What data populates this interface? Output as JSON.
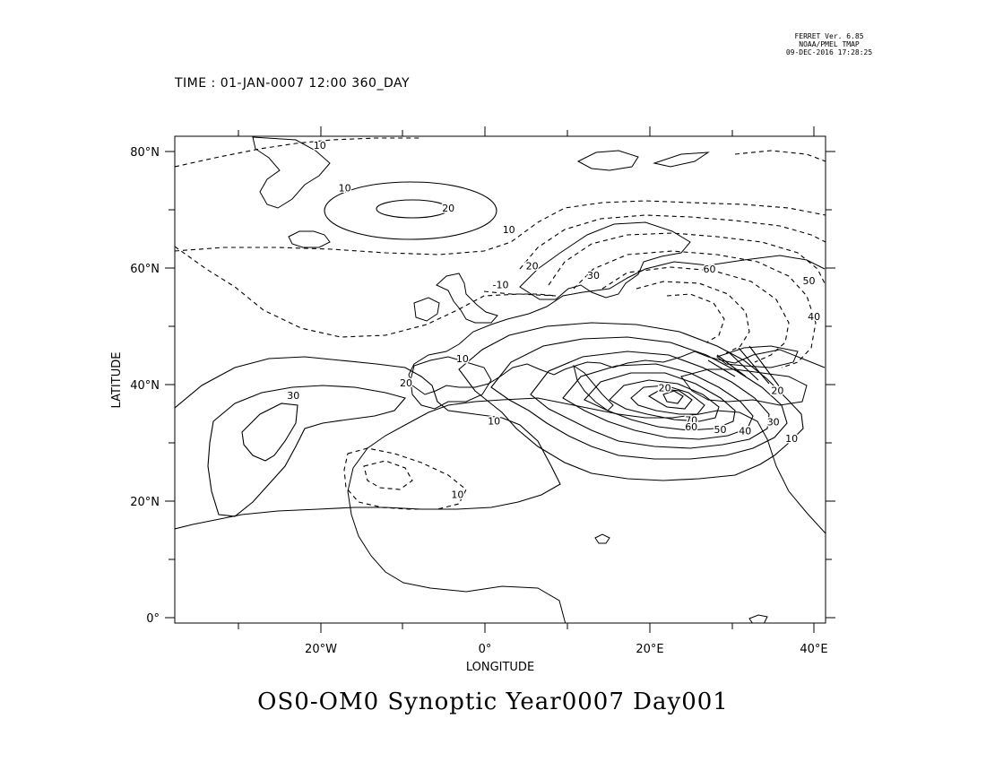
{
  "stamp": {
    "line1": "FERRET Ver. 6.85",
    "line2": "NOAA/PMEL TMAP",
    "line3": "09-DEC-2016 17:28:25"
  },
  "time_label": "TIME : 01-JAN-0007 12:00 360_DAY",
  "title": "OS0-OM0 Synoptic Year0007 Day001",
  "axes": {
    "xlabel": "LONGITUDE",
    "ylabel": "LATITUDE",
    "x_ticks": [
      "20°W",
      "0°",
      "20°E",
      "40°E"
    ],
    "y_ticks": [
      "80°N",
      "60°N",
      "40°N",
      "20°N",
      "0°"
    ]
  },
  "map": {
    "projection": "plate-carree",
    "lon_range": [
      -37.5,
      41
    ],
    "lat_range": [
      -1,
      82
    ],
    "negative_contours": "dashed",
    "positive_contours": "solid",
    "contour_labels": [
      {
        "text": "10",
        "lon": -20,
        "lat": 80.5
      },
      {
        "text": "10",
        "lon": -17,
        "lat": 73.2
      },
      {
        "text": "20",
        "lon": -4.5,
        "lat": 69.8
      },
      {
        "text": "10",
        "lon": 2.8,
        "lat": 66.1
      },
      {
        "text": "20",
        "lon": 5.6,
        "lat": 59.9
      },
      {
        "text": "30",
        "lon": 13,
        "lat": 58.3
      },
      {
        "text": "-10",
        "lon": 1.8,
        "lat": 56.7
      },
      {
        "text": "60",
        "lon": 27,
        "lat": 59.4
      },
      {
        "text": "50",
        "lon": 39,
        "lat": 57.4
      },
      {
        "text": "40",
        "lon": 39.6,
        "lat": 51.3
      },
      {
        "text": "20",
        "lon": -9.6,
        "lat": 40
      },
      {
        "text": "30",
        "lon": -23.2,
        "lat": 37.8
      },
      {
        "text": "10",
        "lon": -2.8,
        "lat": 44.1
      },
      {
        "text": "20",
        "lon": 21.6,
        "lat": 39.1
      },
      {
        "text": "20",
        "lon": 35.2,
        "lat": 38.7
      },
      {
        "text": "10",
        "lon": 1,
        "lat": 33.5
      },
      {
        "text": "70",
        "lon": 24.8,
        "lat": 33.6
      },
      {
        "text": "60",
        "lon": 24.8,
        "lat": 32.5
      },
      {
        "text": "50",
        "lon": 28.3,
        "lat": 32.0
      },
      {
        "text": "40",
        "lon": 31.3,
        "lat": 31.8
      },
      {
        "text": "30",
        "lon": 34.7,
        "lat": 33.3
      },
      {
        "text": "10",
        "lon": 36.9,
        "lat": 30.5
      },
      {
        "text": "10",
        "lon": -3.4,
        "lat": 20.9
      }
    ]
  }
}
